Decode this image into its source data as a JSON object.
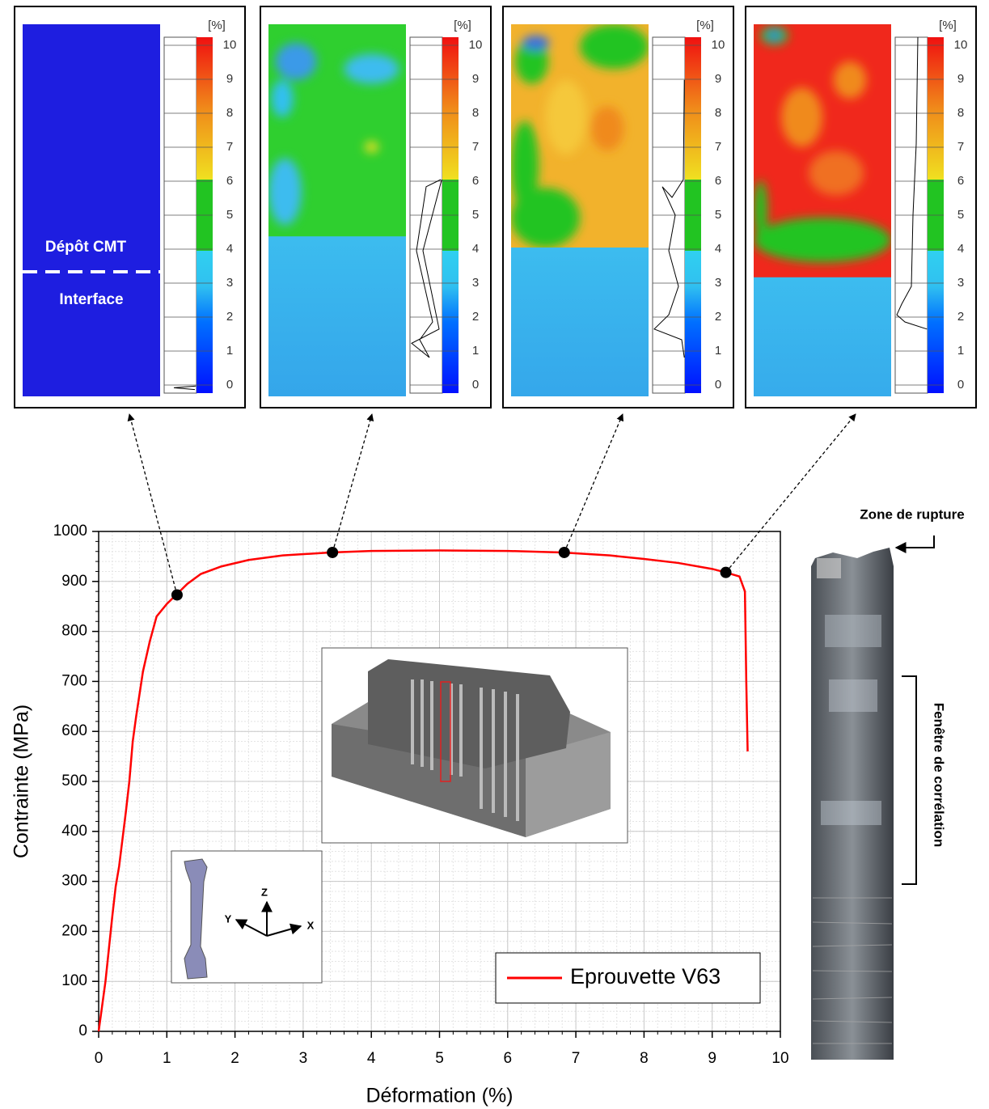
{
  "strain_maps": {
    "unit": "[%]",
    "ticks": [
      0,
      1,
      2,
      3,
      4,
      5,
      6,
      7,
      8,
      9,
      10
    ],
    "deposit_label": "Dépôt CMT",
    "interface_label": "Interface"
  },
  "chart_data": {
    "type": "line",
    "xlabel": "Déformation (%)",
    "ylabel": "Contrainte (MPa)",
    "xlim": [
      0,
      10
    ],
    "ylim": [
      0,
      1000
    ],
    "xticks": [
      0,
      1,
      2,
      3,
      4,
      5,
      6,
      7,
      8,
      9,
      10
    ],
    "yticks": [
      0,
      100,
      200,
      300,
      400,
      500,
      600,
      700,
      800,
      900,
      1000
    ],
    "grid": true,
    "legend": "lower right",
    "series": [
      {
        "name": "Eprouvette V63",
        "color": "#ff0000",
        "x": [
          0,
          0.1,
          0.2,
          0.25,
          0.3,
          0.4,
          0.45,
          0.5,
          0.55,
          0.65,
          0.75,
          0.85,
          1.0,
          1.15,
          1.3,
          1.5,
          1.8,
          2.2,
          2.7,
          3.4,
          4.0,
          5.0,
          6.0,
          6.8,
          7.5,
          8.0,
          8.5,
          9.0,
          9.2,
          9.4,
          9.48,
          9.5,
          9.52
        ],
        "values": [
          0,
          100,
          230,
          290,
          330,
          440,
          500,
          580,
          630,
          720,
          780,
          830,
          855,
          875,
          895,
          915,
          930,
          943,
          952,
          958,
          961,
          962,
          961,
          958,
          952,
          945,
          937,
          925,
          918,
          910,
          880,
          700,
          560
        ]
      }
    ],
    "points": {
      "color": "#000000",
      "x": [
        1.15,
        3.43,
        6.83,
        9.2
      ],
      "values": [
        873,
        958,
        958,
        918
      ]
    }
  },
  "photo": {
    "top_label": "Zone de rupture",
    "side_label": "Fenêtre de corrélation"
  },
  "inset": {
    "axes": [
      "Z",
      "Y",
      "X"
    ]
  }
}
